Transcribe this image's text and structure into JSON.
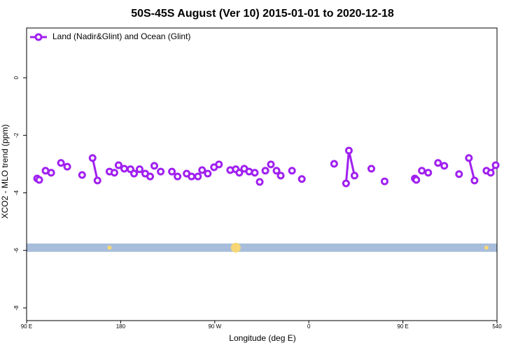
{
  "chart_data": {
    "type": "line",
    "title": "50S-45S August (Ver 10)   2015-01-01 to 2020-12-18",
    "x_label": "Longitude (deg E)",
    "y_label": "XCO2 - MLO trend (ppm)",
    "xlim": [
      90,
      540
    ],
    "xticks": [
      {
        "value": 90,
        "label": "90 E"
      },
      180,
      {
        "value": 270,
        "label": "90 W"
      },
      {
        "value": 360,
        "label": "0"
      },
      {
        "value": 450,
        "label": "90 E"
      },
      540
    ],
    "ylim": [
      -8.44,
      1.73
    ],
    "yticks": [
      0,
      -2,
      -4,
      -6,
      -8
    ],
    "legend": "top-left",
    "band": {
      "ylim": [
        -6.05,
        -5.76
      ],
      "color": "#a7bddb",
      "points_x": [
        169.3,
        290.1,
        529.9
      ],
      "points_size": [
        3,
        7,
        3
      ],
      "points_color": "#f7d774"
    },
    "series": [
      {
        "name": "Land (Nadir&Glint) and Ocean (Glint)",
        "color": "#a020f0",
        "x": [
          100.1,
          102.1,
          null,
          108.1,
          null,
          113.5,
          null,
          122.9,
          null,
          128.9,
          null,
          143.1,
          null,
          153.1,
          157.8,
          null,
          169.3,
          null,
          174,
          null,
          178,
          null,
          183.4,
          null,
          189.4,
          null,
          192.8,
          null,
          198.1,
          null,
          203.5,
          null,
          208.2,
          null,
          212.2,
          null,
          218.3,
          null,
          229,
          null,
          234.4,
          null,
          243.1,
          null,
          247.8,
          null,
          253.9,
          null,
          257.9,
          null,
          263.3,
          null,
          269.3,
          null,
          274,
          null,
          284.8,
          null,
          290.1,
          null,
          293.5,
          null,
          298.2,
          null,
          302.9,
          null,
          308.3,
          null,
          313,
          null,
          318.4,
          null,
          323.7,
          null,
          329.1,
          null,
          333.1,
          null,
          343.9,
          null,
          353.3,
          null,
          384.2,
          null,
          395.6,
          398.3,
          403.7,
          null,
          419.8,
          null,
          432.5,
          null,
          461.4,
          462.8,
          null,
          468.1,
          null,
          474.2,
          null,
          483.6,
          null,
          489.6,
          null,
          503.7,
          null,
          513.1,
          518.5,
          null,
          529.9,
          534,
          538.7
        ],
        "values": [
          -3.5,
          -3.55,
          null,
          -3.23,
          null,
          -3.3,
          null,
          -2.96,
          null,
          -3.09,
          null,
          -3.38,
          null,
          -2.79,
          -3.57,
          null,
          -3.26,
          null,
          -3.3,
          null,
          -3.04,
          null,
          -3.16,
          null,
          -3.18,
          null,
          -3.33,
          null,
          -3.18,
          null,
          -3.33,
          null,
          -3.43,
          null,
          -3.06,
          null,
          -3.26,
          null,
          -3.26,
          null,
          -3.43,
          null,
          -3.33,
          null,
          -3.43,
          null,
          -3.43,
          null,
          -3.21,
          null,
          -3.33,
          null,
          -3.11,
          null,
          -3.01,
          null,
          -3.21,
          null,
          -3.18,
          null,
          -3.3,
          null,
          -3.16,
          null,
          -3.26,
          null,
          -3.3,
          null,
          -3.62,
          null,
          -3.23,
          null,
          -3.01,
          null,
          -3.23,
          null,
          -3.4,
          null,
          -3.23,
          null,
          -3.52,
          null,
          -2.99,
          null,
          -3.67,
          -2.53,
          -3.4,
          null,
          -3.16,
          null,
          -3.6,
          null,
          -3.5,
          -3.55,
          null,
          -3.23,
          null,
          -3.3,
          null,
          -2.96,
          null,
          -3.06,
          null,
          -3.35,
          null,
          -2.79,
          -3.57,
          null,
          -3.23,
          -3.3,
          -3.04
        ]
      }
    ]
  }
}
